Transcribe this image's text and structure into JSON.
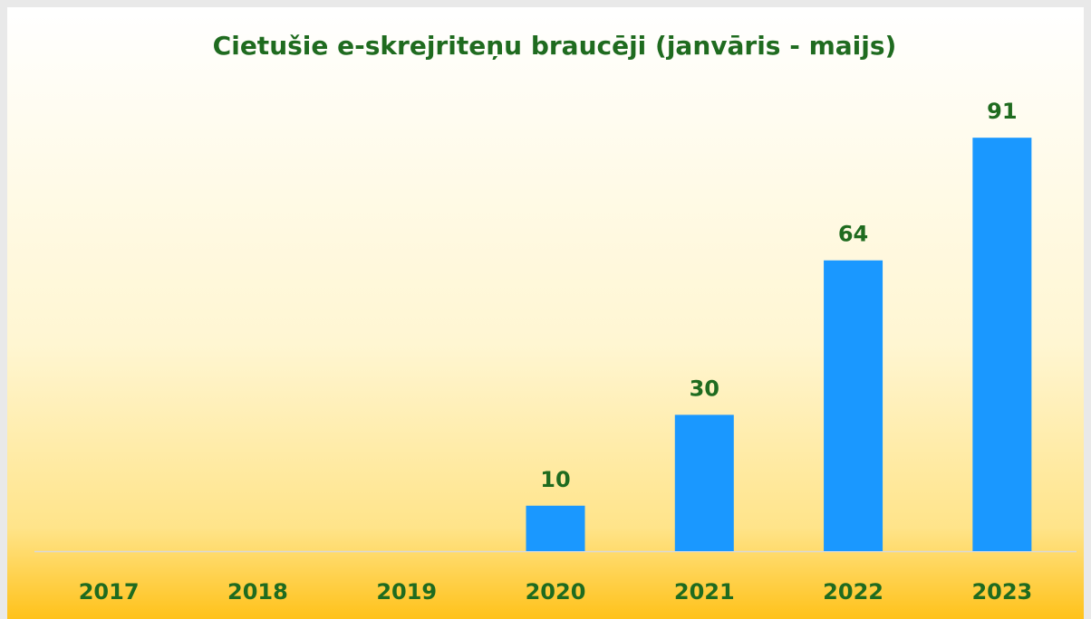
{
  "chart_data": {
    "type": "bar",
    "title": "Cietušie e-skrejriteņu braucēji (janvāris - maijs)",
    "categories": [
      "2017",
      "2018",
      "2019",
      "2020",
      "2021",
      "2022",
      "2023"
    ],
    "values": [
      null,
      null,
      null,
      10,
      30,
      64,
      91
    ],
    "color": "#1a98ff",
    "ylim": [
      0,
      100
    ]
  }
}
